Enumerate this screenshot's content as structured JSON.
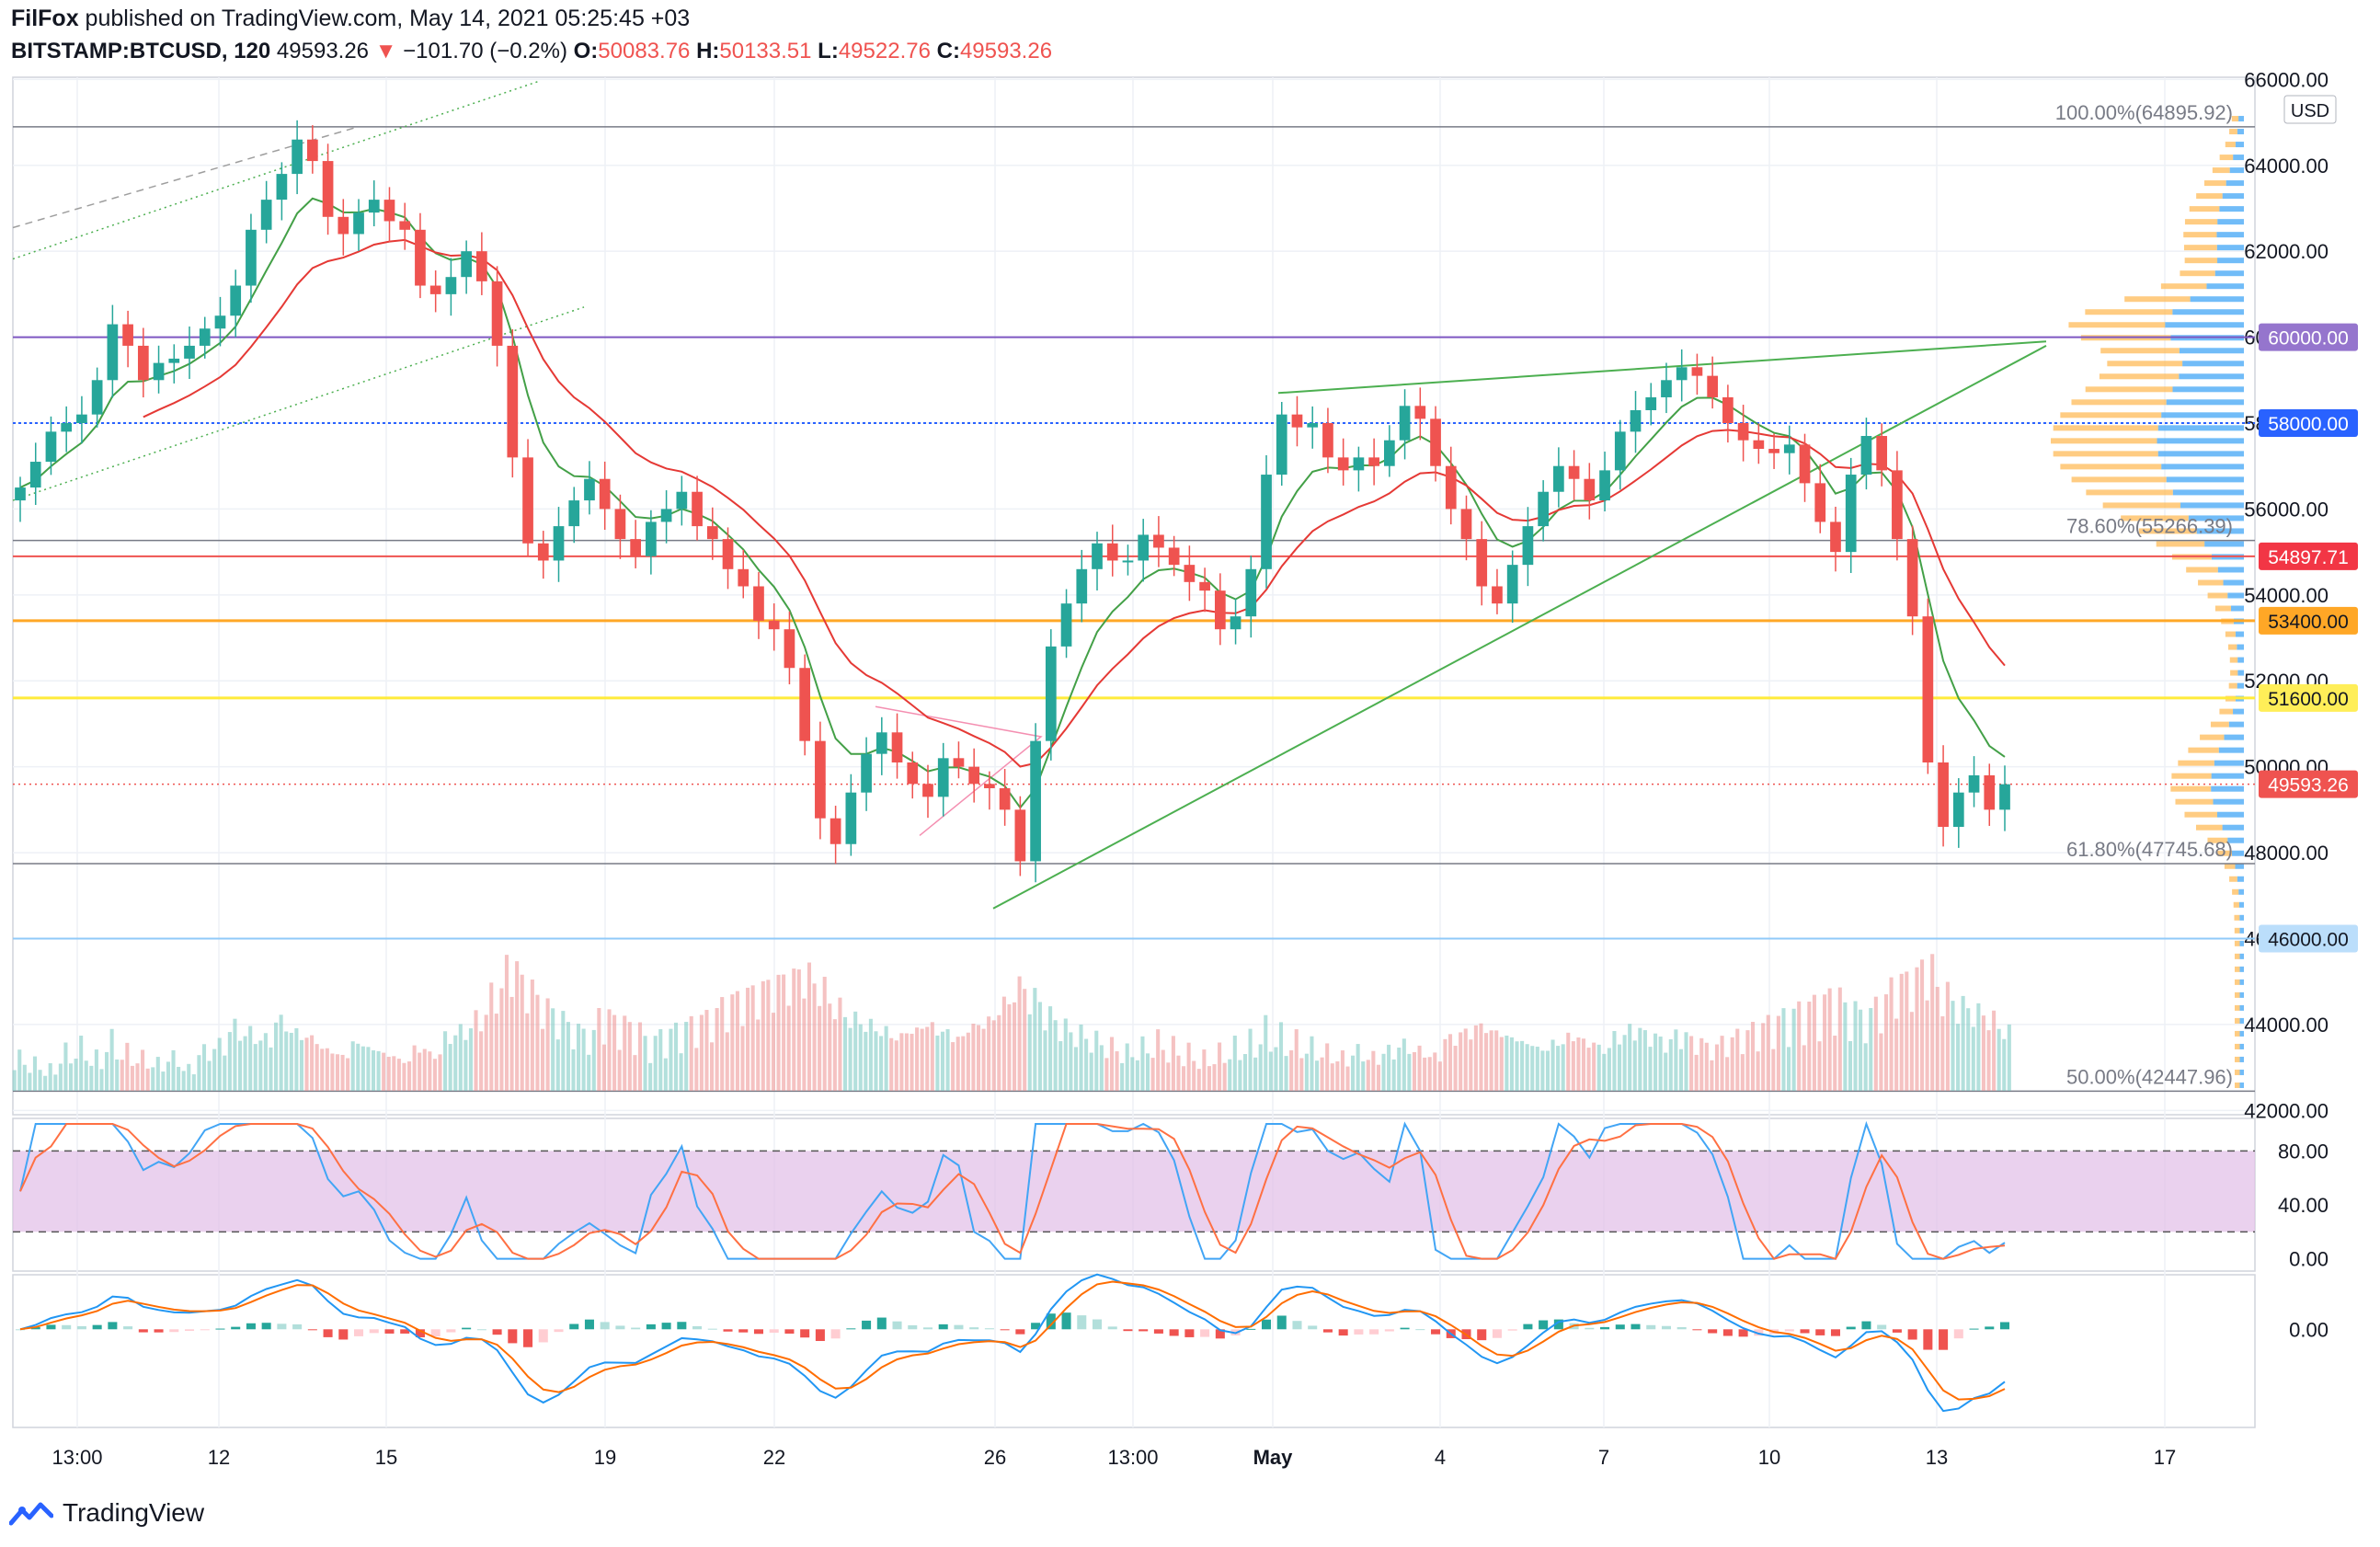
{
  "header": {
    "publisher": "FilFox",
    "published_text": " published on TradingView.com, May 14, 2021 05:25:45 +03",
    "symbol": "BITSTAMP:BTCUSD, 120",
    "last": "49593.26",
    "change_arrow": "▼",
    "change": "−101.70 (−0.2%)",
    "o_label": "O:",
    "o": "50083.76",
    "h_label": "H:",
    "h": "50133.51",
    "l_label": "L:",
    "l": "49522.76",
    "c_label": "C:",
    "c": "49593.26"
  },
  "footer": {
    "brand": "TradingView"
  },
  "colors": {
    "up": "#26a69a",
    "down": "#ef5350",
    "ma_red": "#e53935",
    "ma_green": "#43a047",
    "trend": "#4caf50",
    "purple": "#7e57c2",
    "blue": "#2962ff",
    "orange": "#ffa726",
    "yellow": "#ffeb3b",
    "light_blue": "#90caf9",
    "grid": "#eef1f6"
  },
  "chart_data": {
    "type": "candlestick",
    "title": "BITSTAMP:BTCUSD, 120",
    "currency": "USD",
    "y_ticks": [
      "66000.00",
      "64000.00",
      "62000.00",
      "60000.00",
      "58000.00",
      "56000.00",
      "54000.00",
      "52000.00",
      "50000.00",
      "48000.00",
      "46000.00",
      "44000.00",
      "42000.00"
    ],
    "x_ticks": [
      "13:00",
      "12",
      "15",
      "19",
      "22",
      "26",
      "13:00",
      "May",
      "4",
      "7",
      "10",
      "13",
      "17"
    ],
    "price_range": [
      41900,
      66050
    ],
    "closes": [
      56500,
      57100,
      57800,
      58000,
      58200,
      59000,
      60300,
      59800,
      59000,
      59400,
      59500,
      59800,
      60200,
      60500,
      61200,
      62500,
      63200,
      63800,
      64600,
      64100,
      62800,
      62400,
      62900,
      63200,
      62700,
      62500,
      61200,
      61000,
      61400,
      62000,
      61300,
      59800,
      57200,
      55200,
      54800,
      55600,
      56200,
      56700,
      56000,
      55300,
      54900,
      55700,
      56000,
      56400,
      55600,
      55300,
      54600,
      54200,
      53400,
      53200,
      52300,
      50600,
      48800,
      48200,
      49400,
      50300,
      50800,
      50100,
      49600,
      49300,
      50200,
      50000,
      49600,
      49500,
      49000,
      47800,
      50600,
      52800,
      53800,
      54600,
      55200,
      54800,
      54800,
      55400,
      55100,
      54700,
      54300,
      54100,
      53200,
      53500,
      54600,
      56800,
      58200,
      57900,
      58000,
      57200,
      56900,
      57200,
      57000,
      57600,
      58400,
      58100,
      57000,
      56000,
      55300,
      54200,
      53800,
      54700,
      55600,
      56400,
      57000,
      56700,
      56200,
      56900,
      57800,
      58300,
      58600,
      59000,
      59300,
      59100,
      58600,
      58000,
      57600,
      57400,
      57300,
      57500,
      56600,
      55700,
      55000,
      56800,
      57700,
      56900,
      55300,
      53500,
      50100,
      48600,
      49400,
      49800,
      49000,
      49593.26
    ],
    "volume_relative": [
      0.3,
      0.25,
      0.2,
      0.35,
      0.4,
      0.3,
      0.45,
      0.35,
      0.3,
      0.25,
      0.3,
      0.2,
      0.35,
      0.4,
      0.55,
      0.5,
      0.45,
      0.6,
      0.5,
      0.45,
      0.35,
      0.3,
      0.4,
      0.35,
      0.3,
      0.25,
      0.35,
      0.3,
      0.45,
      0.5,
      0.6,
      0.8,
      1.0,
      0.85,
      0.7,
      0.6,
      0.5,
      0.45,
      0.6,
      0.55,
      0.5,
      0.4,
      0.45,
      0.5,
      0.55,
      0.6,
      0.7,
      0.75,
      0.8,
      0.85,
      0.9,
      0.95,
      0.85,
      0.7,
      0.6,
      0.55,
      0.5,
      0.45,
      0.5,
      0.55,
      0.5,
      0.45,
      0.55,
      0.6,
      0.75,
      0.9,
      0.8,
      0.65,
      0.55,
      0.5,
      0.45,
      0.4,
      0.35,
      0.4,
      0.45,
      0.4,
      0.35,
      0.3,
      0.35,
      0.4,
      0.45,
      0.55,
      0.5,
      0.45,
      0.4,
      0.35,
      0.3,
      0.35,
      0.3,
      0.35,
      0.4,
      0.35,
      0.3,
      0.45,
      0.5,
      0.55,
      0.5,
      0.45,
      0.4,
      0.35,
      0.4,
      0.45,
      0.4,
      0.35,
      0.45,
      0.5,
      0.45,
      0.4,
      0.45,
      0.4,
      0.35,
      0.4,
      0.45,
      0.5,
      0.55,
      0.6,
      0.65,
      0.7,
      0.75,
      0.65,
      0.6,
      0.7,
      0.85,
      0.9,
      1.0,
      0.8,
      0.7,
      0.65,
      0.6,
      0.5
    ],
    "ma_long_label": "EMA (red)",
    "ma_short_label": "EMA (green)",
    "lines": [
      {
        "name": "fib-100",
        "price": 64895.92,
        "label": "100.00%(64895.92)"
      },
      {
        "name": "level-60000",
        "price": 60000,
        "label": "60000.00"
      },
      {
        "name": "level-58000",
        "price": 58000,
        "label": "58000.00"
      },
      {
        "name": "fib-786",
        "price": 55266.39,
        "label": "78.60%(55266.39)"
      },
      {
        "name": "level-54897",
        "price": 54897.71,
        "label": "54897.71"
      },
      {
        "name": "level-53400",
        "price": 53400,
        "label": "53400.00"
      },
      {
        "name": "level-51600",
        "price": 51600,
        "label": "51600.00"
      },
      {
        "name": "last-price",
        "price": 49593.26,
        "label": "49593.26"
      },
      {
        "name": "fib-618",
        "price": 47745.68,
        "label": "61.80%(47745.68)"
      },
      {
        "name": "level-46000",
        "price": 46000,
        "label": "46000.00"
      },
      {
        "name": "fib-50",
        "price": 42447.96,
        "label": "50.00%(42447.96)"
      }
    ],
    "stoch": {
      "ticks": [
        "80.00",
        "40.00",
        "0.00"
      ],
      "levels": [
        80,
        20
      ],
      "range": [
        -5,
        100
      ]
    },
    "macd": {
      "ticks": [
        "0.00"
      ],
      "range": [
        -2600,
        1400
      ]
    }
  }
}
